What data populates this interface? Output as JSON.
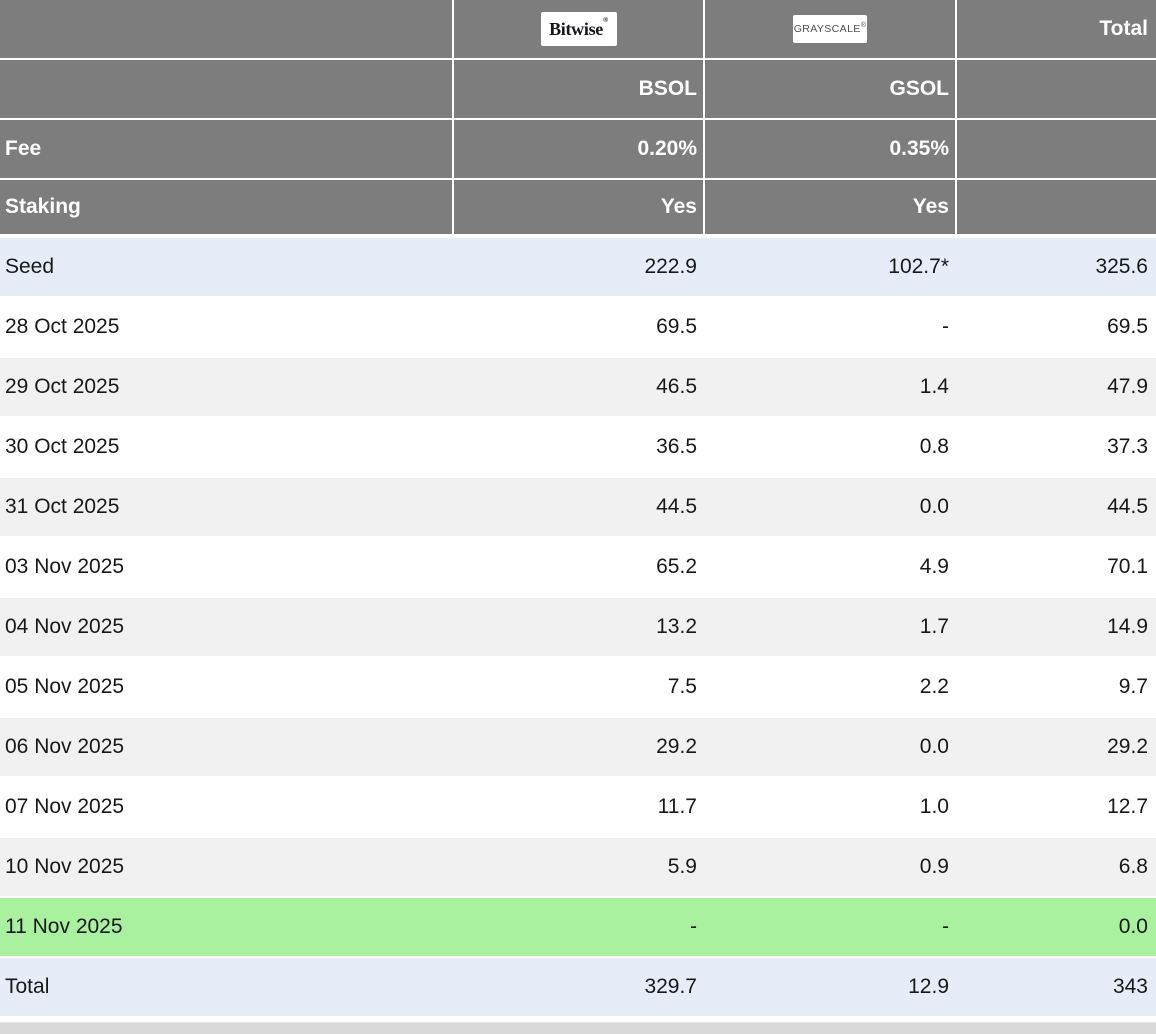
{
  "colors": {
    "header_bg": "#7d7d7d",
    "stripe_bg": "#f1f1f1",
    "accent_row_bg": "#e7edf8",
    "today_row_bg": "#a9f19f",
    "bottom_strip": "#d9d9d9",
    "text": "#17181a",
    "header_text": "#ffffff"
  },
  "header": {
    "bitwise_logo_text": "Bitwise",
    "bitwise_reg_mark": "®",
    "grayscale_logo_text": "GRAYSCALE",
    "grayscale_reg_mark": "®",
    "total_label": "Total",
    "bsol_ticker": "BSOL",
    "gsol_ticker": "GSOL",
    "fee_label": "Fee",
    "fee_bsol": "0.20%",
    "fee_gsol": "0.35%",
    "staking_label": "Staking",
    "staking_bsol": "Yes",
    "staking_gsol": "Yes"
  },
  "rows": [
    {
      "label": "Seed",
      "bsol": "222.9",
      "gsol": "102.7*",
      "total": "325.6",
      "bg": "accent"
    },
    {
      "label": "28 Oct 2025",
      "bsol": "69.5",
      "gsol": "-",
      "total": "69.5",
      "bg": "white"
    },
    {
      "label": "29 Oct 2025",
      "bsol": "46.5",
      "gsol": "1.4",
      "total": "47.9",
      "bg": "stripe"
    },
    {
      "label": "30 Oct 2025",
      "bsol": "36.5",
      "gsol": "0.8",
      "total": "37.3",
      "bg": "white"
    },
    {
      "label": "31 Oct 2025",
      "bsol": "44.5",
      "gsol": "0.0",
      "total": "44.5",
      "bg": "stripe"
    },
    {
      "label": "03 Nov 2025",
      "bsol": "65.2",
      "gsol": "4.9",
      "total": "70.1",
      "bg": "white"
    },
    {
      "label": "04 Nov 2025",
      "bsol": "13.2",
      "gsol": "1.7",
      "total": "14.9",
      "bg": "stripe"
    },
    {
      "label": "05 Nov 2025",
      "bsol": "7.5",
      "gsol": "2.2",
      "total": "9.7",
      "bg": "white"
    },
    {
      "label": "06 Nov 2025",
      "bsol": "29.2",
      "gsol": "0.0",
      "total": "29.2",
      "bg": "stripe"
    },
    {
      "label": "07 Nov 2025",
      "bsol": "11.7",
      "gsol": "1.0",
      "total": "12.7",
      "bg": "white"
    },
    {
      "label": "10 Nov 2025",
      "bsol": "5.9",
      "gsol": "0.9",
      "total": "6.8",
      "bg": "stripe"
    },
    {
      "label": "11 Nov 2025",
      "bsol": "-",
      "gsol": "-",
      "total": "0.0",
      "bg": "today"
    },
    {
      "label": "Total",
      "bsol": "329.7",
      "gsol": "12.9",
      "total": "343",
      "bg": "accent"
    }
  ],
  "chart_data": {
    "type": "table",
    "columns": [
      "",
      "BSOL",
      "GSOL",
      "Total"
    ],
    "issuers": [
      "Bitwise",
      "Grayscale"
    ],
    "fees_pct": {
      "BSOL": 0.2,
      "GSOL": 0.35
    },
    "staking": {
      "BSOL": "Yes",
      "GSOL": "Yes"
    },
    "rows": [
      {
        "label": "Seed",
        "BSOL": 222.9,
        "GSOL": 102.7,
        "GSOL_note": "*",
        "Total": 325.6
      },
      {
        "label": "28 Oct 2025",
        "BSOL": 69.5,
        "GSOL": null,
        "Total": 69.5
      },
      {
        "label": "29 Oct 2025",
        "BSOL": 46.5,
        "GSOL": 1.4,
        "Total": 47.9
      },
      {
        "label": "30 Oct 2025",
        "BSOL": 36.5,
        "GSOL": 0.8,
        "Total": 37.3
      },
      {
        "label": "31 Oct 2025",
        "BSOL": 44.5,
        "GSOL": 0.0,
        "Total": 44.5
      },
      {
        "label": "03 Nov 2025",
        "BSOL": 65.2,
        "GSOL": 4.9,
        "Total": 70.1
      },
      {
        "label": "04 Nov 2025",
        "BSOL": 13.2,
        "GSOL": 1.7,
        "Total": 14.9
      },
      {
        "label": "05 Nov 2025",
        "BSOL": 7.5,
        "GSOL": 2.2,
        "Total": 9.7
      },
      {
        "label": "06 Nov 2025",
        "BSOL": 29.2,
        "GSOL": 0.0,
        "Total": 29.2
      },
      {
        "label": "07 Nov 2025",
        "BSOL": 11.7,
        "GSOL": 1.0,
        "Total": 12.7
      },
      {
        "label": "10 Nov 2025",
        "BSOL": 5.9,
        "GSOL": 0.9,
        "Total": 6.8
      },
      {
        "label": "11 Nov 2025",
        "BSOL": null,
        "GSOL": null,
        "Total": 0.0
      },
      {
        "label": "Total",
        "BSOL": 329.7,
        "GSOL": 12.9,
        "Total": 343
      }
    ]
  }
}
